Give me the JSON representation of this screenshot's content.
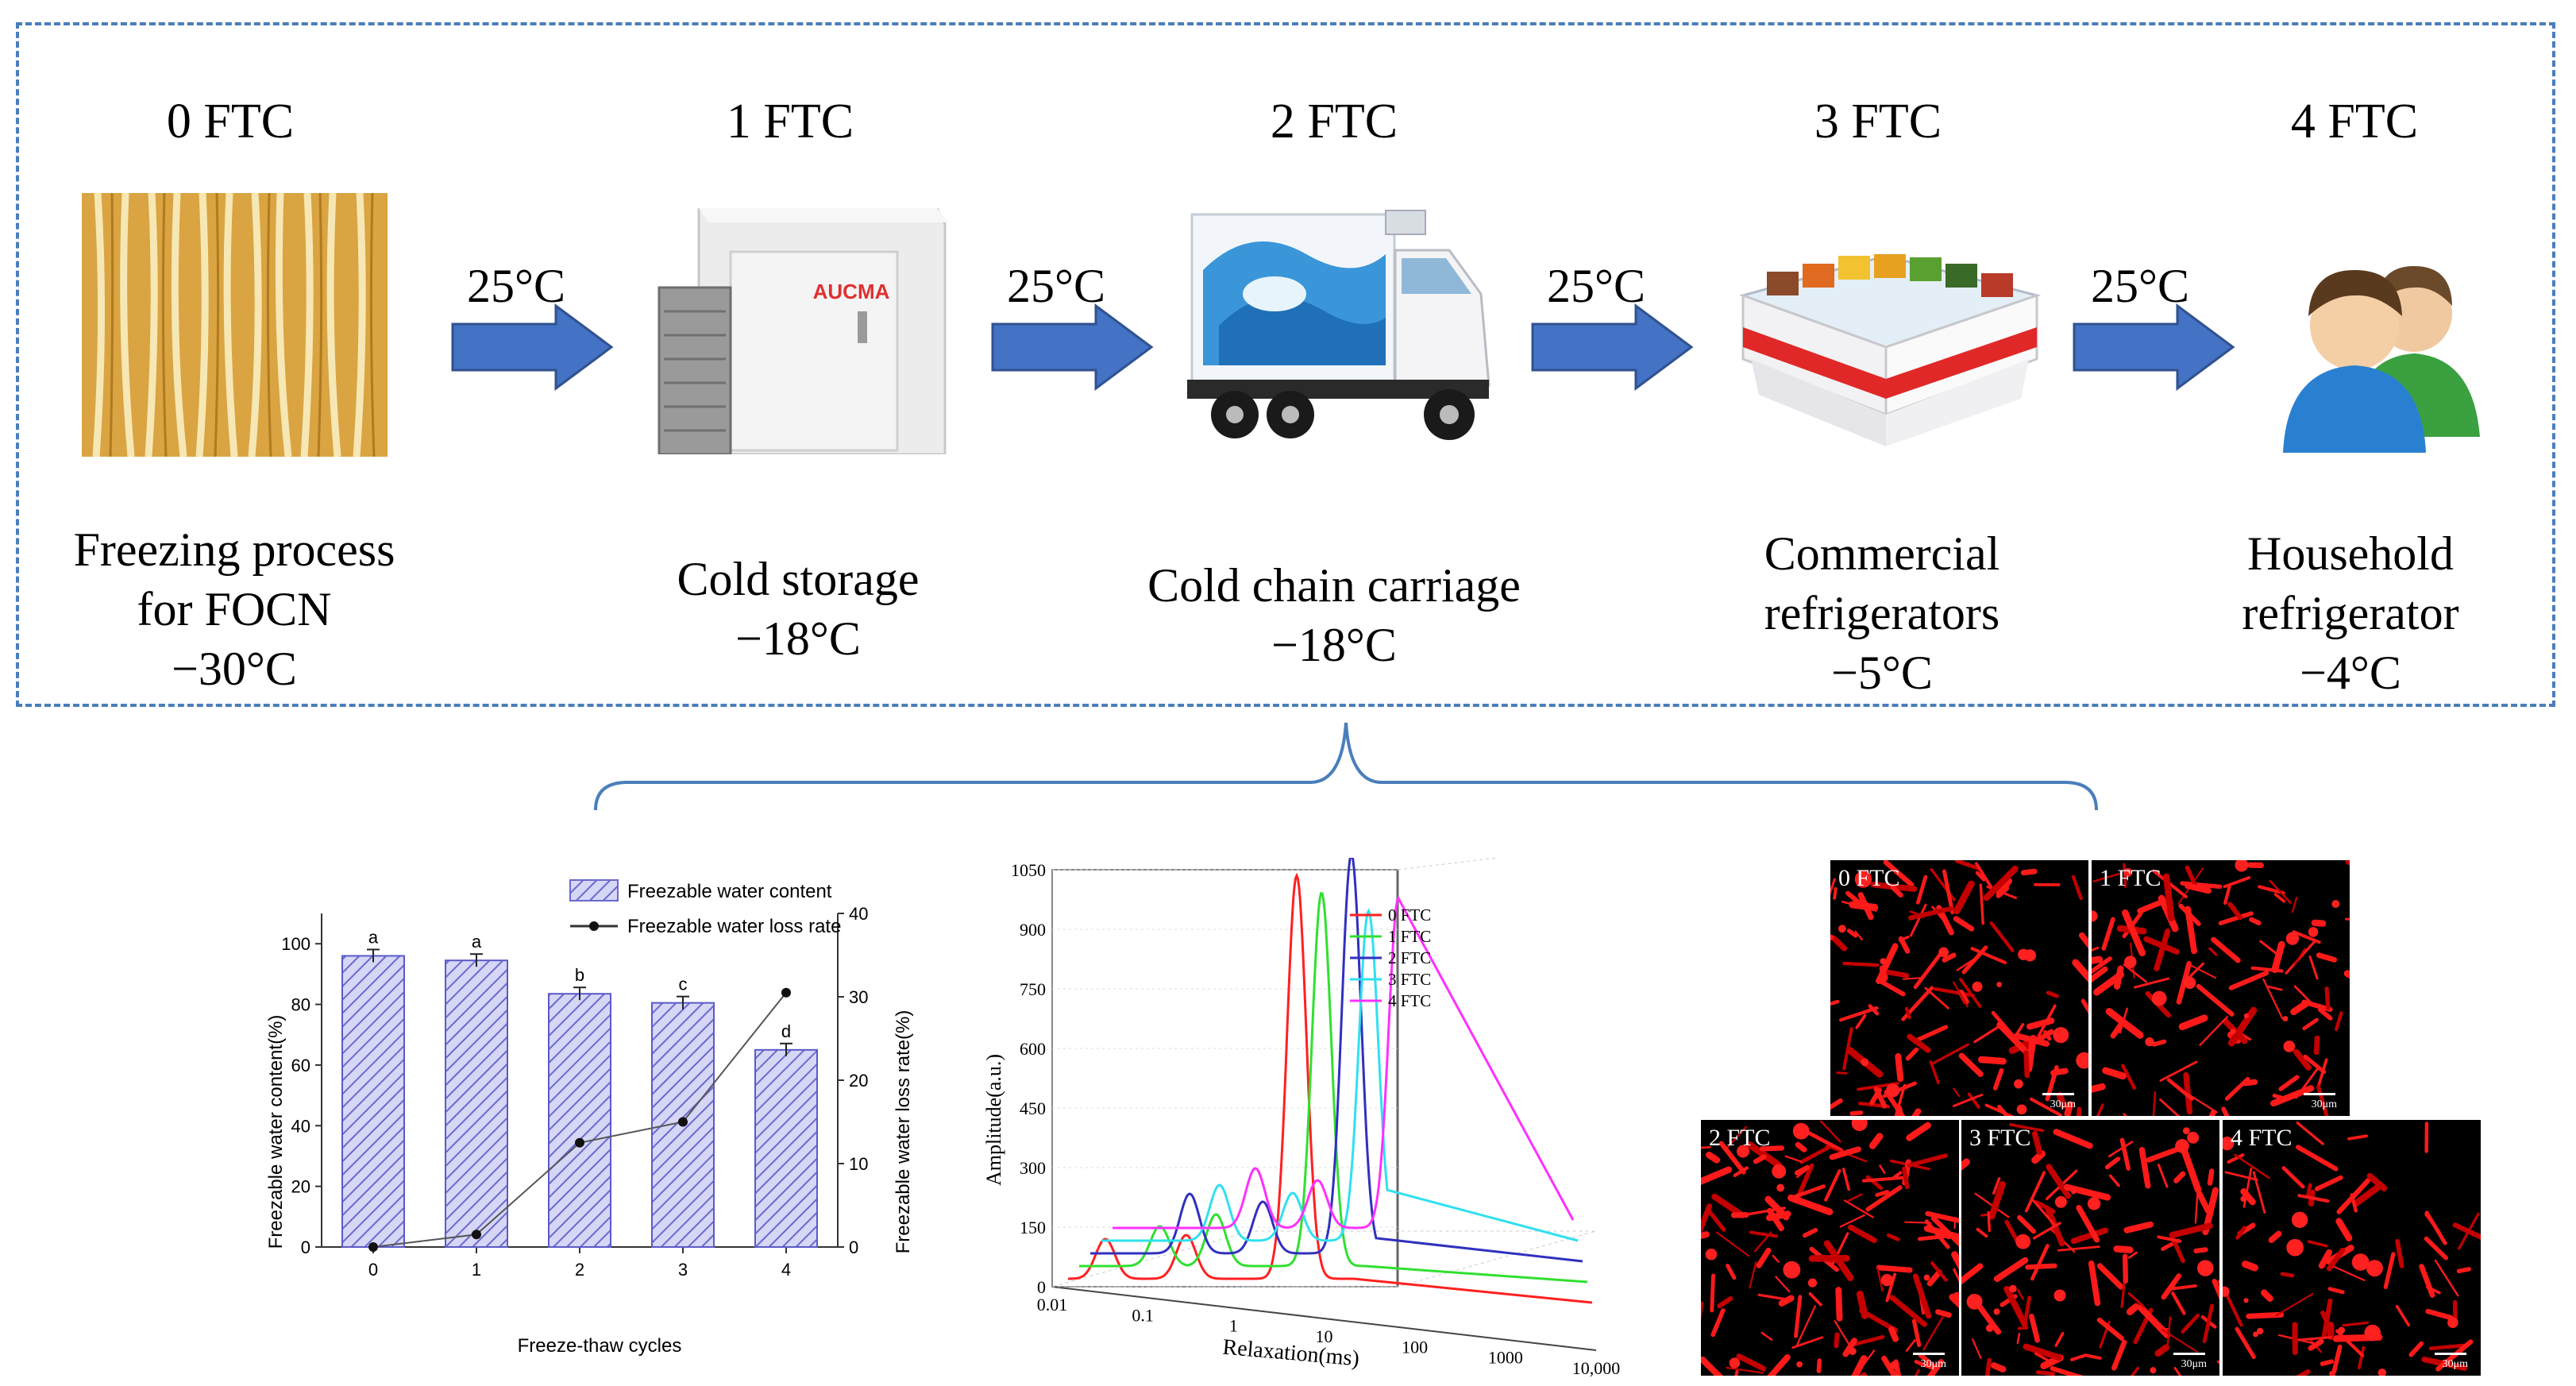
{
  "stages": [
    {
      "title": "0 FTC",
      "label_lines": [
        "Freezing process",
        "for FOCN",
        "−30°C"
      ],
      "icon": "noodles-image"
    },
    {
      "title": "1 FTC",
      "label_lines": [
        "Cold storage",
        "−18°C"
      ],
      "icon": "cold-storage-image"
    },
    {
      "title": "2 FTC",
      "label_lines": [
        "Cold chain carriage",
        "−18°C"
      ],
      "icon": "refrigerated-truck-image"
    },
    {
      "title": "3 FTC",
      "label_lines": [
        "Commercial",
        "refrigerators",
        "−5°C"
      ],
      "icon": "display-freezer-image"
    },
    {
      "title": "4 FTC",
      "label_lines": [
        "Household",
        "refrigerator",
        "−4°C"
      ],
      "icon": "users-icon"
    }
  ],
  "transitions": [
    "25°C",
    "25°C",
    "25°C",
    "25°C"
  ],
  "brand_text": "AUCMA",
  "colors": {
    "frame": "#4a7ebb",
    "arrow": "#4472c4",
    "bar_fill": "#c9c9f0",
    "bar_hatch": "#6a6ad0"
  },
  "bar_chart": {
    "legend": [
      "Freezable water content",
      "Freezable water loss rate"
    ],
    "ylabel_left": "Freezable water content(%)",
    "ylabel_right": "Freezable water loss rate(%)",
    "xlabel": "Freeze-thaw cycles",
    "left_ticks": [
      "0",
      "20",
      "40",
      "60",
      "80",
      "100"
    ],
    "right_ticks": [
      "0",
      "10",
      "20",
      "30",
      "40"
    ],
    "categories": [
      "0",
      "1",
      "2",
      "3",
      "4"
    ],
    "letters": [
      "a",
      "a",
      "b",
      "c",
      "d"
    ]
  },
  "nmr_chart": {
    "ylabel": "Amplitude(a.u.)",
    "xlabel": "Relaxation(ms)",
    "y_ticks": [
      "0",
      "150",
      "300",
      "450",
      "600",
      "750",
      "900",
      "1050"
    ],
    "x_ticks": [
      "0.01",
      "0.1",
      "1",
      "10",
      "100",
      "1000",
      "10,000"
    ],
    "legend": [
      "0 FTC",
      "1 FTC",
      "2 FTC",
      "3 FTC",
      "4 FTC"
    ],
    "series_colors": [
      "#ff2020",
      "#30e030",
      "#3030c0",
      "#30e0f0",
      "#ff30ff"
    ]
  },
  "micrographs": {
    "labels": [
      "0 FTC",
      "1 FTC",
      "2 FTC",
      "3 FTC",
      "4 FTC"
    ],
    "scale": "30μm"
  },
  "chart_data": [
    {
      "type": "bar",
      "title": "",
      "categories": [
        "0",
        "1",
        "2",
        "3",
        "4"
      ],
      "series": [
        {
          "name": "Freezable water content",
          "values": [
            96,
            94.5,
            83.5,
            80.5,
            65
          ],
          "axis": "left"
        },
        {
          "name": "Freezable water loss rate",
          "values": [
            0,
            1.5,
            12.5,
            15,
            30.5
          ],
          "axis": "right",
          "style": "line"
        }
      ],
      "significance": [
        "a",
        "a",
        "b",
        "c",
        "d"
      ],
      "xlabel": "Freeze-thaw cycles",
      "ylabel": "Freezable water content(%)",
      "ylabel_right": "Freezable water loss rate(%)",
      "ylim": [
        0,
        110
      ],
      "ylim_right": [
        0,
        40
      ]
    },
    {
      "type": "line",
      "title": "",
      "xscale": "log",
      "xlabel": "Relaxation(ms)",
      "ylabel": "Amplitude(a.u.)",
      "xlim": [
        0.01,
        10000
      ],
      "ylim": [
        0,
        1050
      ],
      "series": [
        {
          "name": "0 FTC",
          "peaks": [
            {
              "x": 0.1,
              "y": 100
            },
            {
              "x": 2,
              "y": 110
            },
            {
              "x": 120,
              "y": 1015
            }
          ]
        },
        {
          "name": "1 FTC",
          "peaks": [
            {
              "x": 0.5,
              "y": 100
            },
            {
              "x": 4,
              "y": 130
            },
            {
              "x": 200,
              "y": 940
            }
          ]
        },
        {
          "name": "2 FTC",
          "peaks": [
            {
              "x": 1,
              "y": 150
            },
            {
              "x": 15,
              "y": 130
            },
            {
              "x": 400,
              "y": 1005
            }
          ]
        },
        {
          "name": "3 FTC",
          "peaks": [
            {
              "x": 2,
              "y": 140
            },
            {
              "x": 30,
              "y": 120
            },
            {
              "x": 500,
              "y": 830
            }
          ]
        },
        {
          "name": "4 FTC",
          "peaks": [
            {
              "x": 5,
              "y": 150
            },
            {
              "x": 50,
              "y": 120
            },
            {
              "x": 1000,
              "y": 830
            }
          ]
        }
      ]
    }
  ]
}
